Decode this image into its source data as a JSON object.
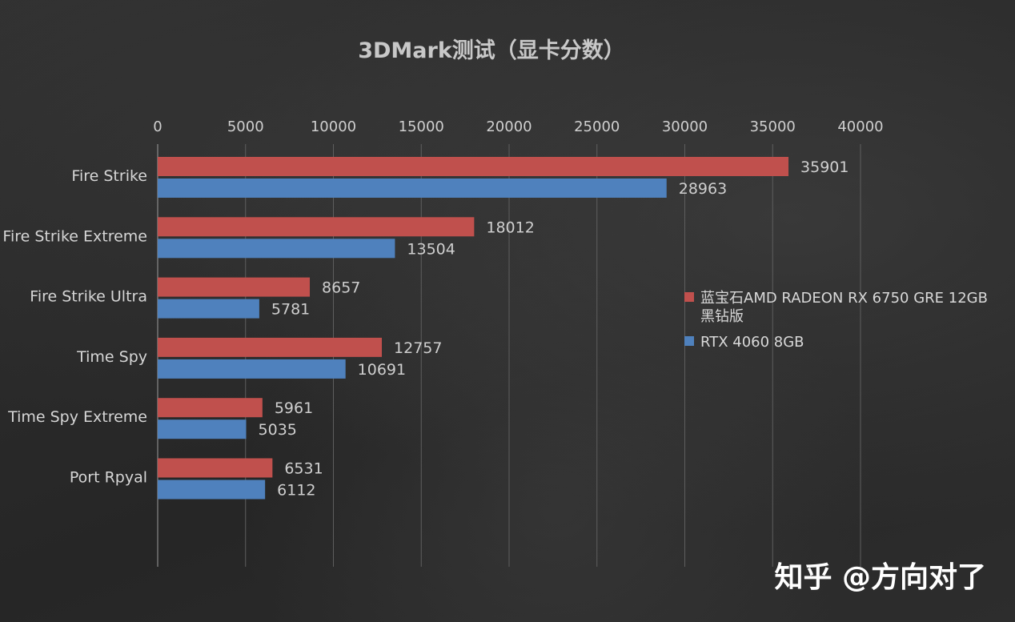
{
  "watermark": "知乎 @方向对了",
  "chart_data": {
    "type": "bar",
    "orientation": "horizontal",
    "title": "3DMark测试（显卡分数）",
    "categories": [
      "Fire Strike",
      "Fire Strike Extreme",
      "Fire Strike Ultra",
      "Time Spy",
      "Time Spy Extreme",
      "Port Rpyal"
    ],
    "series": [
      {
        "name": "蓝宝石AMD RADEON RX 6750 GRE 12GB 黑钻版",
        "values": [
          35901,
          18012,
          8657,
          12757,
          5961,
          6531
        ],
        "color": "#c0504d"
      },
      {
        "name": "RTX 4060 8GB",
        "values": [
          28963,
          13504,
          5781,
          10691,
          5035,
          6112
        ],
        "color": "#4f81bd"
      }
    ],
    "xlim": [
      0,
      40000
    ],
    "xticks": [
      "0",
      "5000",
      "10000",
      "15000",
      "20000",
      "25000",
      "30000",
      "35000",
      "40000"
    ],
    "axis_position": "top",
    "grid": true,
    "legend": "right"
  }
}
